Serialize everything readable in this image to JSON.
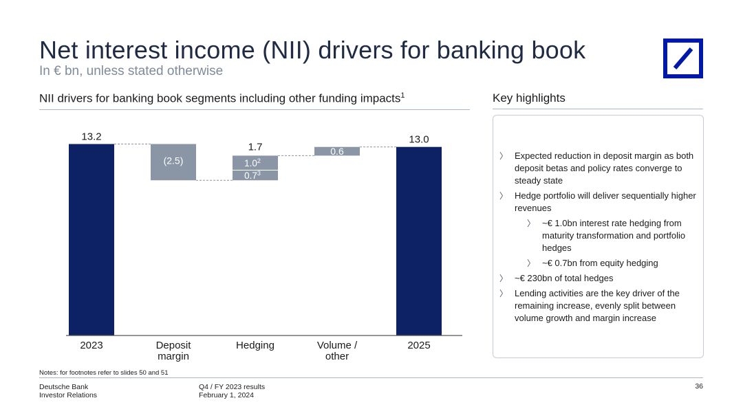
{
  "slide": {
    "title": "Net interest income (NII) drivers for banking book",
    "subtitle": "In € bn, unless stated otherwise"
  },
  "left_section": {
    "heading": "NII drivers for banking book segments including other funding impacts",
    "heading_footnote": "1"
  },
  "right_section": {
    "heading": "Key highlights",
    "items": [
      {
        "level": 1,
        "text": "Expected reduction in deposit margin as both deposit betas and policy rates converge to steady state"
      },
      {
        "level": 1,
        "text": "Hedge portfolio will deliver sequentially higher revenues"
      },
      {
        "level": 2,
        "text": "~€ 1.0bn interest rate hedging from maturity transformation and portfolio hedges"
      },
      {
        "level": 2,
        "text": "~€ 0.7bn from equity hedging"
      },
      {
        "level": 1,
        "text": "~€ 230bn of total hedges"
      },
      {
        "level": 1,
        "text": "Lending activities are the key driver of the remaining increase, evenly split between volume growth and margin increase"
      }
    ]
  },
  "chart_data": {
    "type": "bar",
    "subtype": "waterfall",
    "categories": [
      "2023",
      "Deposit margin",
      "Hedging",
      "Volume / other",
      "2025"
    ],
    "category_labels": [
      [
        "2023"
      ],
      [
        "Deposit",
        "margin"
      ],
      [
        "Hedging"
      ],
      [
        "Volume /",
        "other"
      ],
      [
        "2025"
      ]
    ],
    "bars": [
      {
        "kind": "total",
        "value": 13.2,
        "label": "13.2"
      },
      {
        "kind": "delta",
        "value": -2.5,
        "label": "(2.5)"
      },
      {
        "kind": "delta",
        "value": 1.7,
        "label": "1.7",
        "segments": [
          {
            "value": 0.7,
            "label": "0.7",
            "footnote": "3"
          },
          {
            "value": 1.0,
            "label": "1.0",
            "footnote": "2"
          }
        ]
      },
      {
        "kind": "delta",
        "value": 0.6,
        "label": "0.6"
      },
      {
        "kind": "total",
        "value": 13.0,
        "label": "13.0"
      }
    ],
    "colors": {
      "total": "#0c2265",
      "delta": "#8a96a6",
      "connector": "#8a96a6",
      "baseline": "#555555"
    }
  },
  "notes": "Notes: for footnotes refer to slides 50 and 51",
  "footer": {
    "company": "Deutsche Bank",
    "department": "Investor Relations",
    "report": "Q4 / FY 2023 results",
    "date": "February 1, 2024",
    "page": "36"
  },
  "logo": {
    "name": "deutsche-bank-logo",
    "color": "#0018a8"
  }
}
